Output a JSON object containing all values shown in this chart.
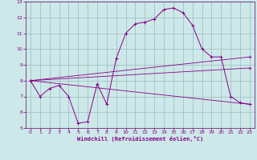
{
  "xlabel": "Windchill (Refroidissement éolien,°C)",
  "bg_color": "#cce8e8",
  "line_color": "#880088",
  "grid_color": "#99bbbb",
  "axis_color": "#660066",
  "xlim": [
    -0.5,
    23.5
  ],
  "ylim": [
    5,
    13
  ],
  "yticks": [
    5,
    6,
    7,
    8,
    9,
    10,
    11,
    12,
    13
  ],
  "xticks": [
    0,
    1,
    2,
    3,
    4,
    5,
    6,
    7,
    8,
    9,
    10,
    11,
    12,
    13,
    14,
    15,
    16,
    17,
    18,
    19,
    20,
    21,
    22,
    23
  ],
  "series1_x": [
    0,
    1,
    2,
    3,
    4,
    5,
    6,
    7,
    8,
    9,
    10,
    11,
    12,
    13,
    14,
    15,
    16,
    17,
    18,
    19,
    20,
    21,
    22,
    23
  ],
  "series1_y": [
    8.0,
    7.0,
    7.5,
    7.7,
    7.0,
    5.3,
    5.4,
    7.8,
    6.5,
    9.4,
    11.0,
    11.6,
    11.7,
    11.9,
    12.5,
    12.6,
    12.3,
    11.5,
    10.0,
    9.5,
    9.5,
    7.0,
    6.6,
    6.5
  ],
  "series2_x": [
    0,
    23
  ],
  "series2_y": [
    8.0,
    9.5
  ],
  "series3_x": [
    0,
    23
  ],
  "series3_y": [
    8.0,
    8.8
  ],
  "series4_x": [
    0,
    23
  ],
  "series4_y": [
    8.0,
    6.5
  ],
  "markersize": 2.5
}
